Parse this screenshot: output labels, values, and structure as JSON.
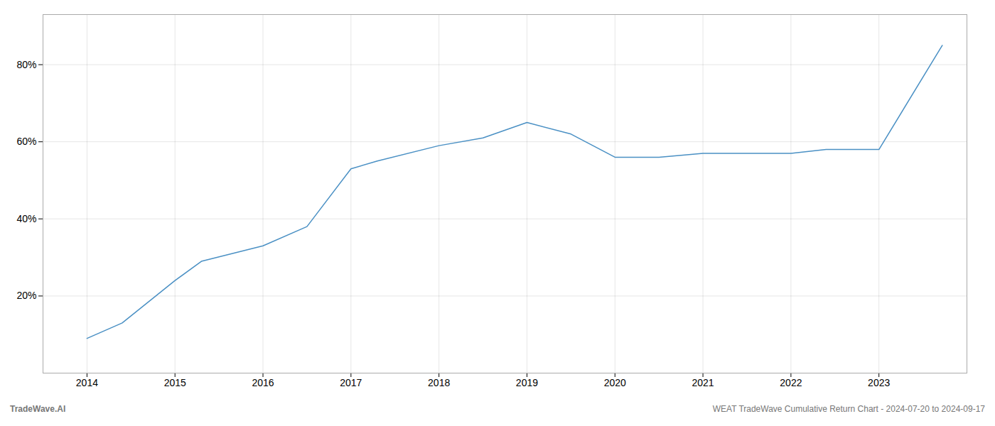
{
  "chart_data": {
    "type": "line",
    "x": [
      2014,
      2014.4,
      2015,
      2015.3,
      2016,
      2016.5,
      2017,
      2017.3,
      2018,
      2018.5,
      2019,
      2019.5,
      2020,
      2020.5,
      2021,
      2021.5,
      2022,
      2022.4,
      2022.7,
      2023,
      2023.72
    ],
    "values": [
      9,
      13,
      24,
      29,
      33,
      38,
      53,
      55,
      59,
      61,
      65,
      62,
      56,
      56,
      57,
      57,
      57,
      58,
      58,
      58,
      85
    ],
    "color": "#4a90c4",
    "xlim": [
      2013.5,
      2024.0
    ],
    "ylim": [
      0,
      93
    ],
    "xticks": [
      2014,
      2015,
      2016,
      2017,
      2018,
      2019,
      2020,
      2021,
      2022,
      2023
    ],
    "yticks": [
      {
        "value": 20,
        "label": "20%"
      },
      {
        "value": 40,
        "label": "40%"
      },
      {
        "value": 60,
        "label": "60%"
      },
      {
        "value": 80,
        "label": "80%"
      }
    ],
    "grid": true,
    "annotations": [
      "TradeWave.AI",
      "WEAT TradeWave Cumulative Return Chart - 2024-07-20 to 2024-09-17"
    ]
  }
}
